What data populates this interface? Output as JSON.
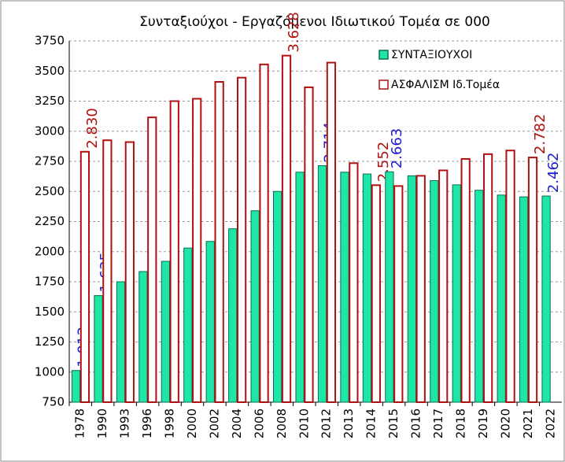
{
  "chart_data": {
    "type": "bar",
    "title": "Συνταξιούχοι - Εργαζόμενοι Ιδιωτικού Τομέα σε 000",
    "categories": [
      "1978",
      "1990",
      "1993",
      "1996",
      "1998",
      "2000",
      "2002",
      "2004",
      "2006",
      "2008",
      "2010",
      "2012",
      "2013",
      "2014",
      "2015",
      "2016",
      "2017",
      "2018",
      "2019",
      "2020",
      "2021",
      "2022"
    ],
    "series": [
      {
        "name": "ΣΥΝΤΑΞΙΟΥΧΟΙ",
        "color": "#1ee6a8",
        "hollow": false,
        "values": [
          1013,
          1635,
          1750,
          1835,
          1920,
          2030,
          2085,
          2190,
          2340,
          2500,
          2660,
          2714,
          2660,
          2645,
          2663,
          2630,
          2590,
          2555,
          2510,
          2470,
          2455,
          2462
        ],
        "value_labels": [
          "1.013",
          "1.635",
          null,
          null,
          null,
          null,
          null,
          null,
          null,
          null,
          null,
          "2.714",
          null,
          null,
          "2.663",
          null,
          null,
          null,
          null,
          null,
          null,
          "2.462"
        ]
      },
      {
        "name": "ΑΣΦΑΛΙΣΜ Ιδ.Τομέα",
        "color": "#b01010",
        "hollow": true,
        "values": [
          2830,
          2925,
          2910,
          3115,
          3250,
          3270,
          3410,
          3445,
          3555,
          3628,
          3365,
          3570,
          2735,
          2552,
          2545,
          2630,
          2675,
          2770,
          2810,
          2840,
          2782,
          null
        ],
        "value_labels": [
          "2.830",
          null,
          null,
          null,
          null,
          null,
          null,
          null,
          null,
          "3.628",
          null,
          null,
          null,
          "2.552",
          null,
          null,
          null,
          null,
          null,
          null,
          "2.782",
          null
        ]
      }
    ],
    "ylim": [
      750,
      3750
    ],
    "yticks": [
      750,
      1000,
      1250,
      1500,
      1750,
      2000,
      2250,
      2500,
      2750,
      3000,
      3250,
      3500,
      3750
    ],
    "grid": true,
    "legend": "top-right"
  }
}
